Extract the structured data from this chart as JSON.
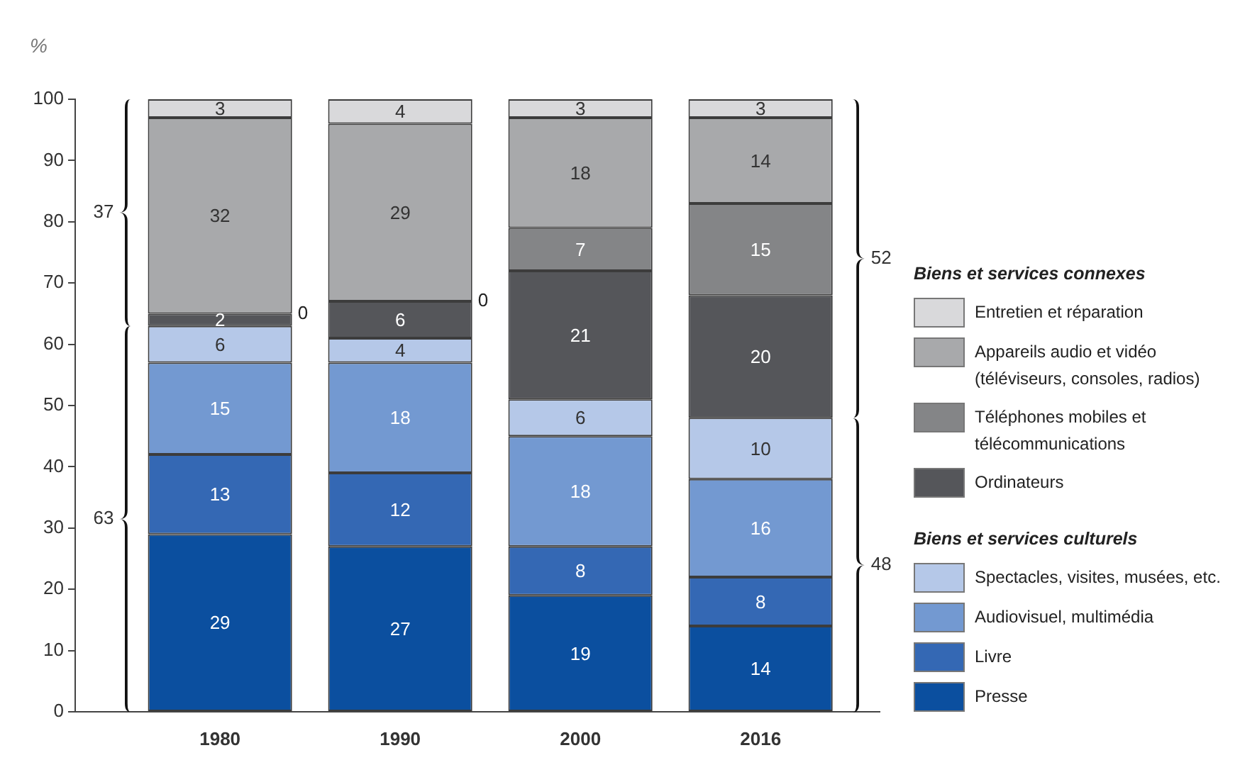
{
  "chart_data": {
    "type": "bar",
    "stacked": true,
    "ylabel": "%",
    "categories": [
      "1980",
      "1990",
      "2000",
      "2016"
    ],
    "series": [
      {
        "name": "Presse",
        "color": "#0b4f9f",
        "values": [
          29,
          27,
          19,
          14
        ],
        "value_labels": [
          "29",
          "27",
          "19",
          "14"
        ]
      },
      {
        "name": "Livre",
        "color": "#3468b4",
        "values": [
          13,
          12,
          8,
          8
        ],
        "value_labels": [
          "13",
          "12",
          "8",
          "8"
        ]
      },
      {
        "name": "Audiovisuel, multimédia",
        "color": "#7399d1",
        "values": [
          15,
          18,
          18,
          16
        ],
        "value_labels": [
          "15",
          "18",
          "18",
          "16"
        ]
      },
      {
        "name": "Spectacles, visites, musées, etc.",
        "color": "#b5c8e8",
        "values": [
          6,
          4,
          6,
          10
        ],
        "value_labels": [
          "6",
          "4",
          "6",
          "10"
        ]
      },
      {
        "name": "Ordinateurs",
        "color": "#55565a",
        "values": [
          2,
          6,
          21,
          20
        ],
        "value_labels": [
          "2",
          "6",
          "21",
          "20"
        ]
      },
      {
        "name": "Téléphones mobiles et télécommunications",
        "color": "#848587",
        "values": [
          0,
          0,
          7,
          15
        ],
        "value_labels": [
          null,
          null,
          "7",
          "15"
        ]
      },
      {
        "name": "Appareils audio et vidéo (téléviseurs, consoles, radios)",
        "color": "#a8a9ab",
        "values": [
          32,
          29,
          18,
          14
        ],
        "value_labels": [
          "32",
          "29",
          "18",
          "14"
        ]
      },
      {
        "name": "Entretien et réparation",
        "color": "#d9d9db",
        "values": [
          3,
          4,
          3,
          3
        ],
        "value_labels": [
          "3",
          "4",
          "3",
          "3"
        ]
      }
    ],
    "ylim": [
      0,
      100
    ],
    "yticks": [
      0,
      10,
      20,
      30,
      40,
      50,
      60,
      70,
      80,
      90,
      100
    ],
    "grid": false,
    "legend": "right",
    "annotations": [
      "0",
      "0",
      "37",
      "63",
      "52",
      "48",
      "Biens et services connexes",
      "Biens et services culturels"
    ]
  }
}
